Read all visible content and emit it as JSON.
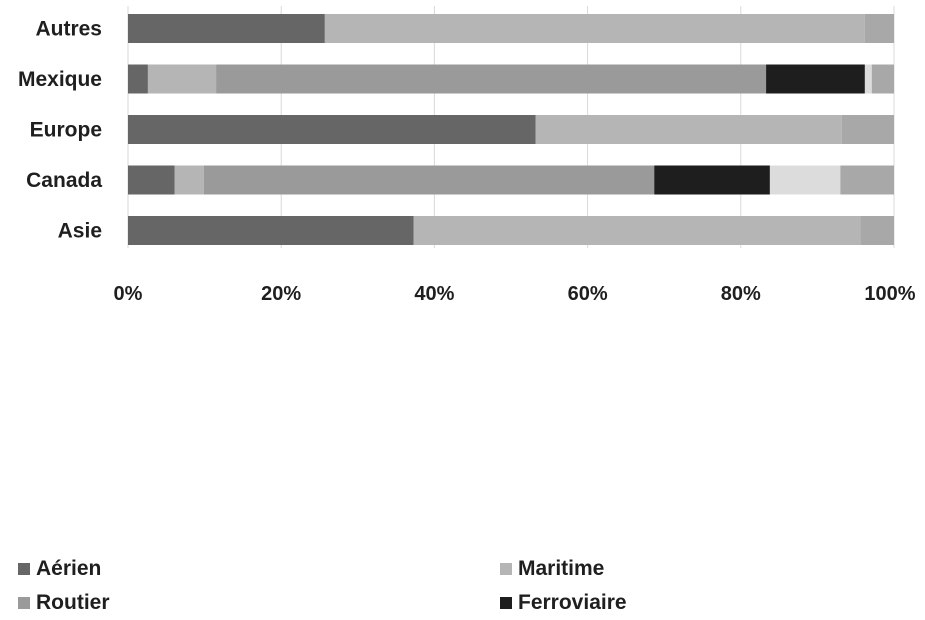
{
  "chart_data": {
    "type": "bar",
    "orientation": "horizontal",
    "stacked": true,
    "normalized": true,
    "categories": [
      "Autres",
      "Mexique",
      "Europe",
      "Canada",
      "Asie"
    ],
    "series": [
      {
        "name": "Aérien",
        "color": "#666666",
        "values": [
          25.7,
          2.6,
          53.2,
          6.1,
          37.3
        ]
      },
      {
        "name": "Maritime",
        "color": "#b5b5b5",
        "values": [
          70.5,
          8.9,
          40.0,
          3.8,
          58.3
        ]
      },
      {
        "name": "Routier",
        "color": "#9a9a9a",
        "values": [
          0,
          71.8,
          0,
          58.8,
          0
        ]
      },
      {
        "name": "Ferroviaire",
        "color": "#1e1e1e",
        "values": [
          0,
          12.9,
          0,
          15.1,
          0
        ]
      },
      {
        "name": "",
        "color": "#dcdcdc",
        "values": [
          0,
          0.9,
          0,
          9.2,
          0
        ]
      },
      {
        "name": "",
        "color": "#a8a8a8",
        "values": [
          3.8,
          2.9,
          6.8,
          7.0,
          4.4
        ]
      }
    ],
    "xlim": [
      0,
      100
    ],
    "xticks": [
      "0%",
      "20%",
      "40%",
      "60%",
      "80%",
      "100%"
    ],
    "xlabel": "",
    "ylabel": "",
    "title": "",
    "grid": true,
    "legend_position": "bottom"
  }
}
